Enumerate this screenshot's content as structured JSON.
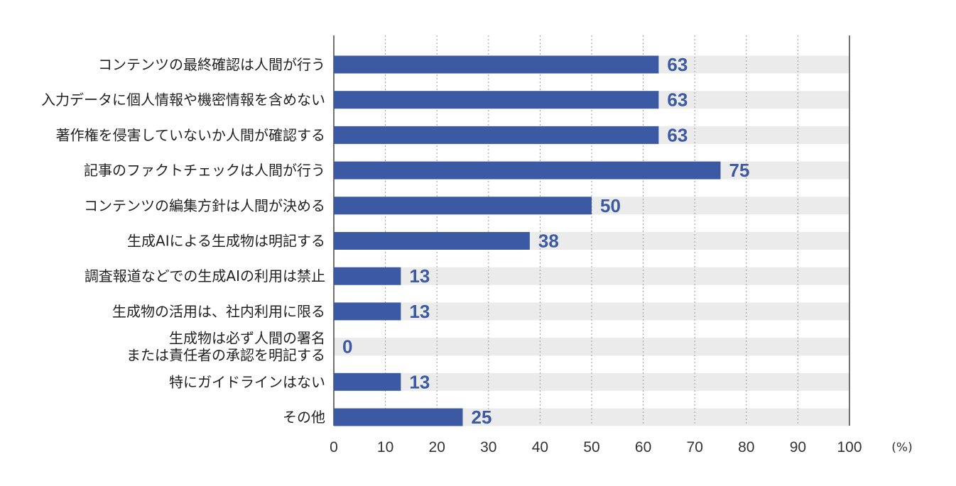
{
  "chart_data": {
    "type": "bar",
    "orientation": "horizontal",
    "categories": [
      [
        "コンテンツの最終確認は人間が行う"
      ],
      [
        "入力データに個人情報や機密情報を含めない"
      ],
      [
        "著作権を侵害していないか人間が確認する"
      ],
      [
        "記事のファクトチェックは人間が行う"
      ],
      [
        "コンテンツの編集方針は人間が決める"
      ],
      [
        "生成AIによる生成物は明記する"
      ],
      [
        "調査報道などでの生成AIの利用は禁止"
      ],
      [
        "生成物の活用は、社内利用に限る"
      ],
      [
        "生成物は必ず人間の署名",
        "または責任者の承認を明記する"
      ],
      [
        "特にガイドラインはない"
      ],
      [
        "その他"
      ]
    ],
    "values": [
      63,
      63,
      63,
      75,
      50,
      38,
      13,
      13,
      0,
      13,
      25
    ],
    "xlim": [
      0,
      100
    ],
    "xticks": [
      0,
      10,
      20,
      30,
      40,
      50,
      60,
      70,
      80,
      90,
      100
    ],
    "unit_label": "(%)",
    "title": "",
    "xlabel": "",
    "ylabel": "",
    "grid": "vertical dotted",
    "colors": {
      "bar": "#3b5aa3",
      "track": "#ebebeb",
      "value_text": "#3b5aa3",
      "grid": "#999999",
      "axis": "#444444"
    }
  }
}
